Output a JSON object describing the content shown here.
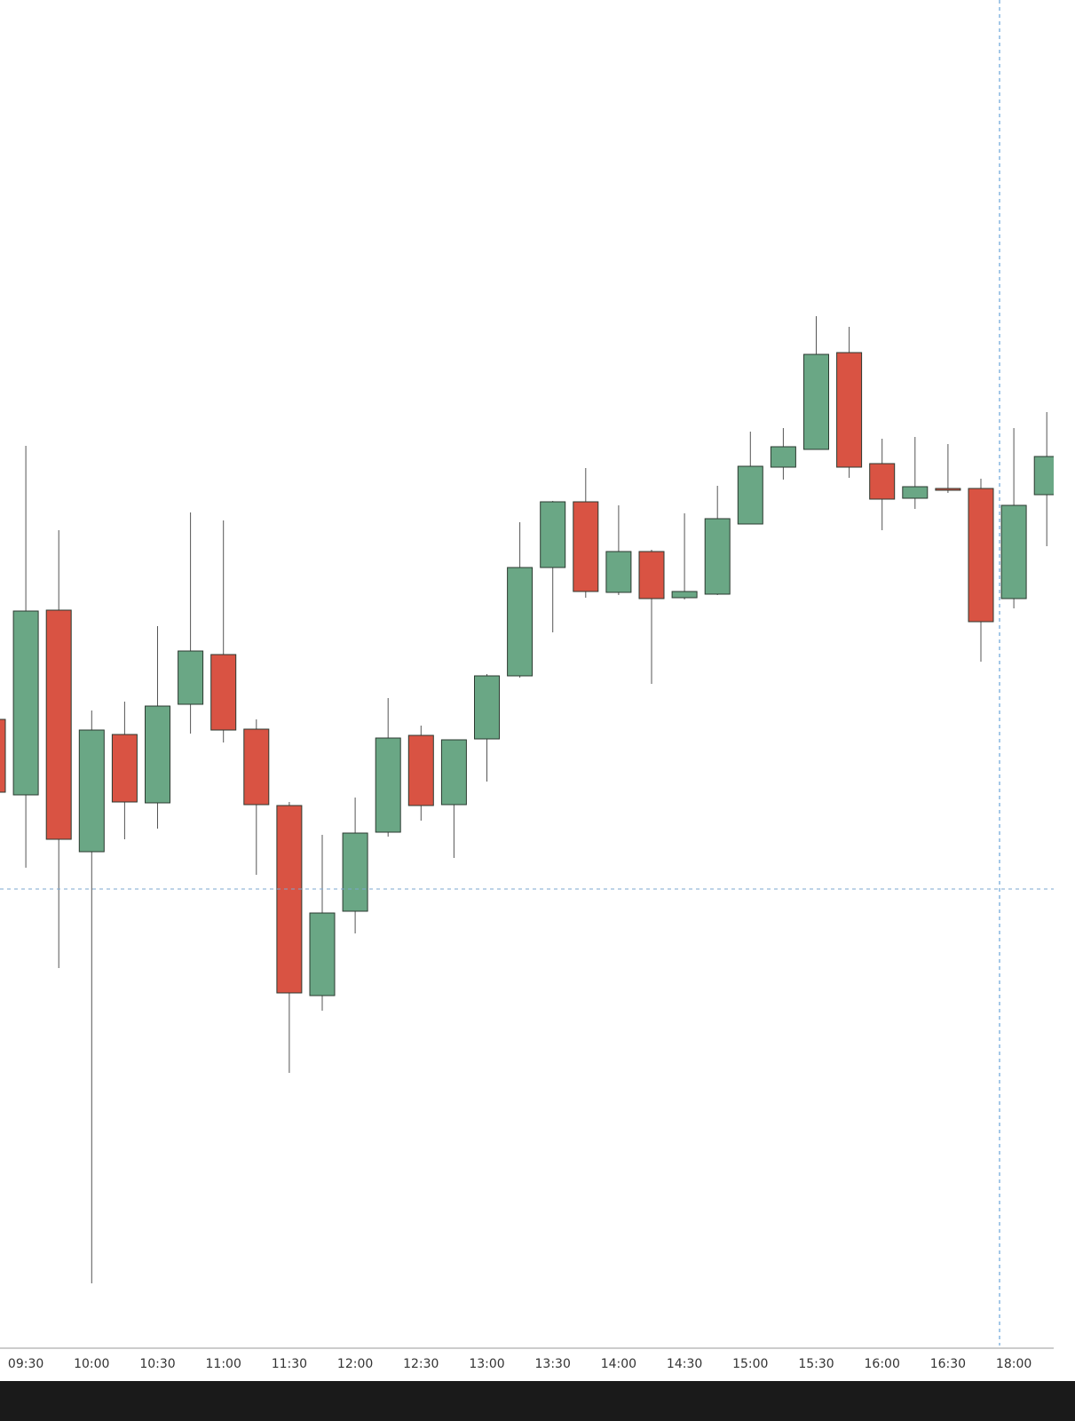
{
  "chart_data": {
    "type": "candlestick",
    "categories": [
      null,
      "09:30",
      null,
      "10:00",
      null,
      "10:30",
      null,
      "11:00",
      null,
      "11:30",
      null,
      "12:00",
      null,
      "12:30",
      null,
      "13:00",
      null,
      "13:30",
      null,
      "14:00",
      null,
      "14:30",
      null,
      "15:00",
      null,
      "15:30",
      null,
      "16:00",
      null,
      "16:30",
      null,
      "18:00",
      null
    ],
    "open": [
      710,
      625,
      833,
      561,
      693,
      616,
      727,
      783,
      699,
      613,
      399,
      494,
      583,
      692,
      614,
      688,
      759,
      881,
      955,
      853,
      899,
      847,
      851,
      930,
      994,
      1014,
      1123,
      998,
      959,
      970,
      970,
      846,
      963
    ],
    "high": [
      710,
      1018,
      923,
      720,
      730,
      815,
      943,
      934,
      710,
      617,
      580,
      622,
      734,
      703,
      687,
      761,
      932,
      956,
      993,
      951,
      901,
      942,
      973,
      1034,
      1038,
      1164,
      1152,
      1026,
      1028,
      1020,
      981,
      1038,
      1056
    ],
    "low": [
      628,
      543,
      430,
      75,
      575,
      587,
      694,
      684,
      535,
      312,
      382,
      469,
      578,
      596,
      554,
      640,
      757,
      808,
      847,
      850,
      750,
      845,
      850,
      930,
      980,
      1014,
      982,
      923,
      947,
      965,
      775,
      835,
      905
    ],
    "close": [
      628,
      832,
      575,
      698,
      617,
      725,
      787,
      698,
      614,
      402,
      492,
      582,
      689,
      613,
      687,
      759,
      881,
      955,
      854,
      899,
      846,
      854,
      936,
      995,
      1017,
      1121,
      994,
      958,
      972,
      968,
      820,
      951,
      1006
    ],
    "up_color": "#6aa785",
    "down_color": "#d95343",
    "ylim": [
      0,
      1520
    ]
  }
}
